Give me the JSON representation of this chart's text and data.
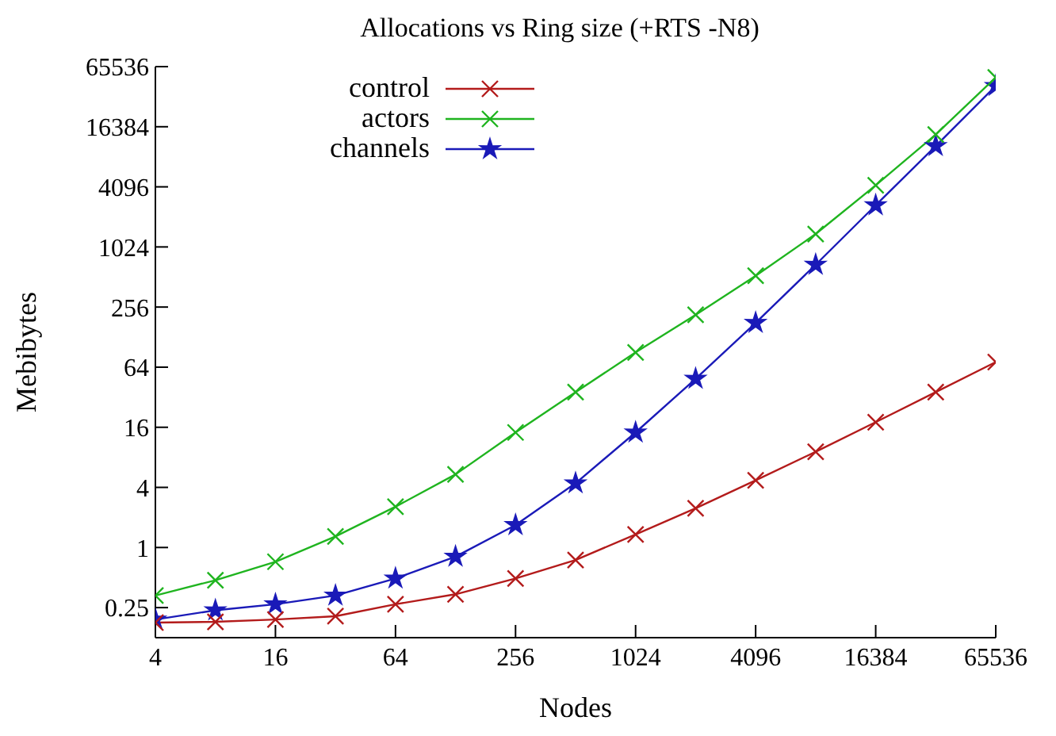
{
  "chart_data": {
    "type": "line",
    "title": "Allocations vs Ring size (+RTS -N8)",
    "xlabel": "Nodes",
    "ylabel": "Mebibytes",
    "x": [
      4,
      8,
      16,
      32,
      64,
      128,
      256,
      512,
      1024,
      2048,
      4096,
      8192,
      16384,
      32768,
      65536
    ],
    "series": [
      {
        "name": "control",
        "color": "#b31b1b",
        "marker": "cross",
        "values": [
          0.177,
          0.18,
          0.19,
          0.205,
          0.27,
          0.34,
          0.49,
          0.75,
          1.35,
          2.47,
          4.7,
          9.1,
          18,
          36,
          72
        ]
      },
      {
        "name": "actors",
        "color": "#1fb41f",
        "marker": "cross",
        "values": [
          0.33,
          0.47,
          0.72,
          1.29,
          2.56,
          5.4,
          14.2,
          36,
          90,
          214,
          527,
          1380,
          4240,
          13700,
          51000
        ]
      },
      {
        "name": "channels",
        "color": "#1a1ab8",
        "marker": "star",
        "values": [
          0.19,
          0.235,
          0.27,
          0.33,
          0.49,
          0.81,
          1.68,
          4.4,
          14.2,
          49,
          178,
          680,
          2680,
          10500,
          42000
        ]
      }
    ],
    "log": "xy",
    "xlim": [
      4,
      65536
    ],
    "xticks": [
      4,
      16,
      64,
      256,
      1024,
      4096,
      16384,
      65536
    ],
    "ylim": [
      0.125,
      65536
    ],
    "yticks": [
      0.25,
      1,
      4,
      16,
      64,
      256,
      1024,
      4096,
      16384,
      65536
    ],
    "grid": false,
    "legend": "top",
    "line_style": "solid"
  }
}
